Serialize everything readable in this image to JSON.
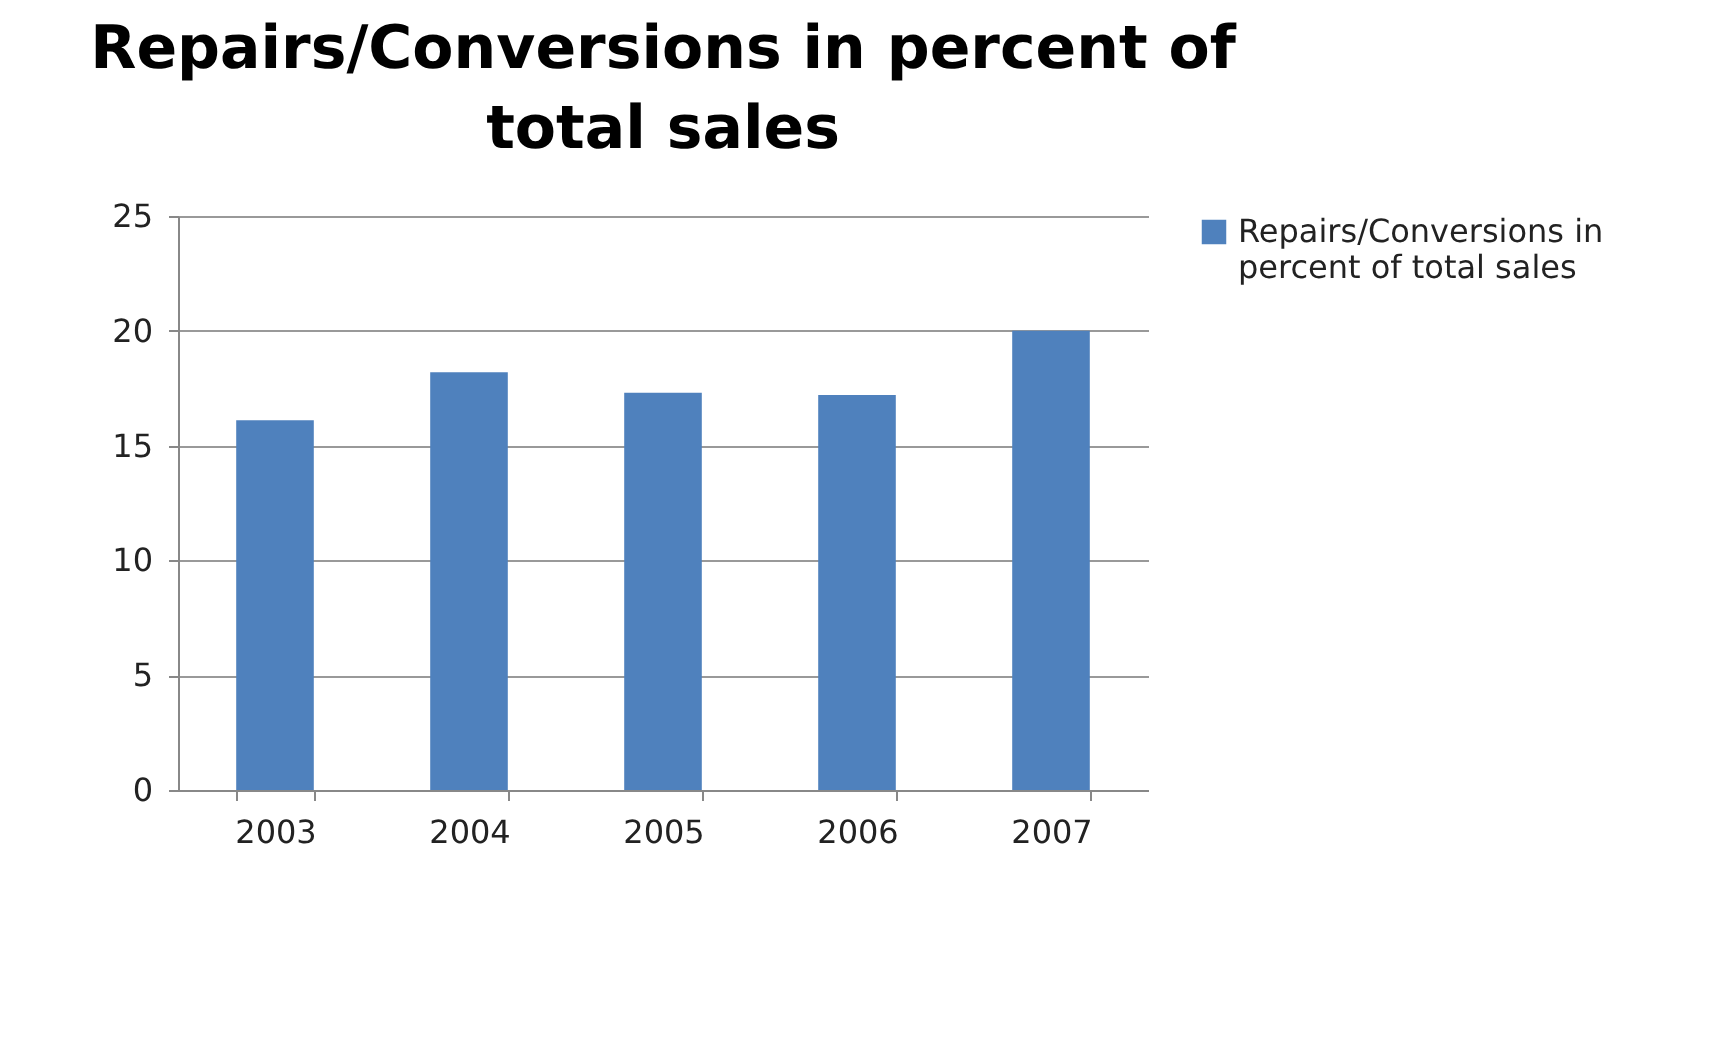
{
  "chart_data": {
    "type": "bar",
    "title": "Repairs/Conversions in percent of total sales",
    "categories": [
      "2003",
      "2004",
      "2005",
      "2006",
      "2007"
    ],
    "series": [
      {
        "name": "Repairs/Conversions in percent of total sales",
        "color": "#4f81bd",
        "values": [
          16.1,
          18.2,
          17.3,
          17.2,
          20.0
        ]
      }
    ],
    "ylim": [
      0,
      25
    ],
    "yticks": [
      0,
      5,
      10,
      15,
      20,
      25
    ],
    "grid": "y",
    "legend": "right"
  }
}
